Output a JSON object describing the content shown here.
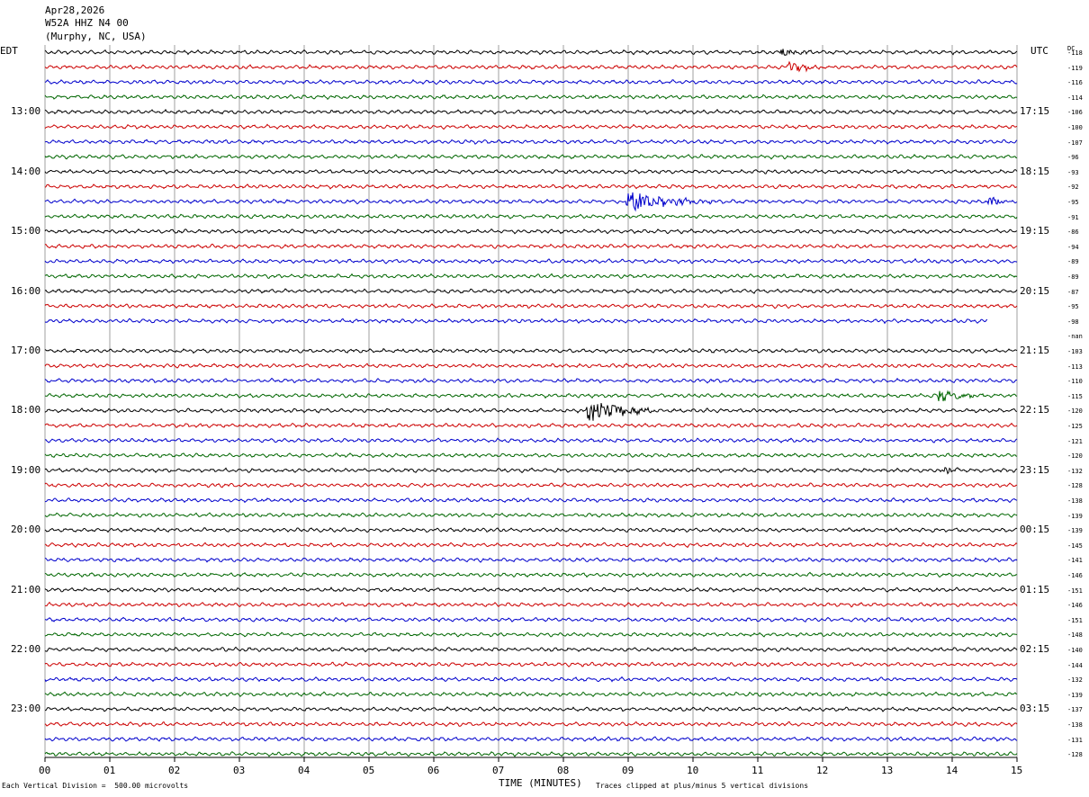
{
  "header": {
    "date": "Apr28,2026",
    "station": "W52A HHZ N4 00",
    "location": "(Murphy, NC, USA)"
  },
  "chart_data": {
    "type": "line",
    "left_timezone_label": "EDT",
    "right_timezone_label": "UTC",
    "dc_label": "DC",
    "xlabel": "TIME (MINUTES)",
    "x_ticks": [
      "00",
      "01",
      "02",
      "03",
      "04",
      "05",
      "06",
      "07",
      "08",
      "09",
      "10",
      "11",
      "12",
      "13",
      "14",
      "15"
    ],
    "xlim": [
      0,
      15
    ],
    "left_hour_labels": [
      "13:00",
      "14:00",
      "15:00",
      "16:00",
      "17:00",
      "18:00",
      "19:00",
      "20:00",
      "21:00",
      "22:00",
      "23:00"
    ],
    "right_hour_labels": [
      "17:15",
      "18:15",
      "19:15",
      "20:15",
      "21:15",
      "22:15",
      "23:15",
      "00:15",
      "01:15",
      "02:15",
      "03:15"
    ],
    "dc_offsets": [
      "-118",
      "-119",
      "-116",
      "-114",
      "-106",
      "-100",
      "-107",
      "-96",
      "-93",
      "-92",
      "-95",
      "-91",
      "-86",
      "-94",
      "-89",
      "-89",
      "-87",
      "-95",
      "-98",
      "-nan",
      "-103",
      "-113",
      "-110",
      "-115",
      "-120",
      "-125",
      "-121",
      "-120",
      "-132",
      "-128",
      "-138",
      "-139",
      "-139",
      "-145",
      "-141",
      "-146",
      "-151",
      "-146",
      "-151",
      "-148",
      "-140",
      "-144",
      "-132",
      "-139",
      "-137",
      "-138",
      "-131",
      "-128"
    ],
    "trace_colors": [
      "#000000",
      "#cc0000",
      "#0000cc",
      "#006600"
    ],
    "line_count": 48,
    "missing_lines": [
      19
    ],
    "partial_lines": [
      {
        "line": 18,
        "end_minute": 14.55
      }
    ],
    "events": [
      {
        "line": 0,
        "minute": 11.4,
        "amplitude": 0.8,
        "duration": 0.5
      },
      {
        "line": 1,
        "minute": 11.5,
        "amplitude": 1.4,
        "duration": 0.6
      },
      {
        "line": 10,
        "minute": 9.0,
        "amplitude": 2.2,
        "duration": 1.3
      },
      {
        "line": 10,
        "minute": 14.6,
        "amplitude": 1.2,
        "duration": 0.3
      },
      {
        "line": 23,
        "minute": 13.8,
        "amplitude": 1.3,
        "duration": 0.7
      },
      {
        "line": 24,
        "minute": 8.4,
        "amplitude": 2.8,
        "duration": 1.0
      },
      {
        "line": 28,
        "minute": 13.9,
        "amplitude": 0.8,
        "duration": 0.3
      }
    ],
    "footer_left": "Each Vertical Division =  500.00 microvolts",
    "footer_right": "Traces clipped at plus/minus 5 vertical divisions"
  }
}
